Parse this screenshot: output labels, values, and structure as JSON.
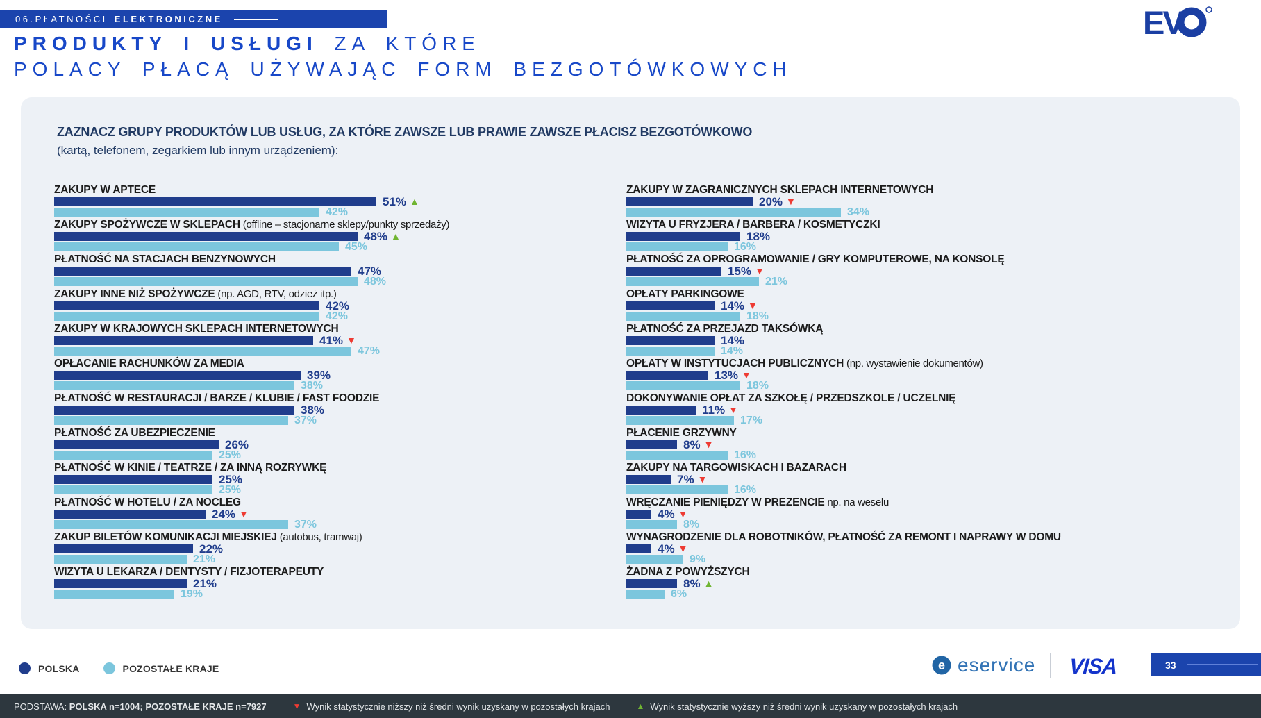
{
  "header": {
    "section": "06.PŁATNOŚCI",
    "section_bold": "ELEKTRONICZNE",
    "title_bold": "PRODUKTY I USŁUGI",
    "title_light": "ZA KTÓRE",
    "title_line2": "POLACY PŁACĄ UŻYWAJĄC FORM BEZGOTÓWKOWYCH"
  },
  "card": {
    "question_bold": "ZAZNACZ GRUPY PRODUKTÓW LUB USŁUG, ZA KTÓRE ZAWSZE LUB PRAWIE ZAWSZE PŁACISZ BEZGOTÓWKOWO",
    "question_sub": "(kartą, telefonem, zegarkiem lub innym urządzeniem):"
  },
  "legend": {
    "items": [
      {
        "label": "POLSKA",
        "color": "#203d8c"
      },
      {
        "label": "POZOSTAŁE KRAJE",
        "color": "#7cc6dd"
      }
    ]
  },
  "footer": {
    "base_label": "PODSTAWA: ",
    "base_value": "POLSKA n=1004; POZOSTAŁE KRAJE n=7927",
    "down_note": "Wynik statystycznie niższy niż średni wynik uzyskany w pozostałych krajach",
    "up_note": "Wynik statystycznie wyższy niż średni wynik uzyskany w pozostałych krajach"
  },
  "branding": {
    "evo_ev": "EV",
    "eservice_icon_letter": "e",
    "eservice": "eservice",
    "visa": "VISA",
    "page_number": "33"
  },
  "chart_data": {
    "type": "bar",
    "orientation": "horizontal",
    "unit": "%",
    "series_names": [
      "POLSKA",
      "POZOSTAŁE KRAJE"
    ],
    "colors": {
      "polska": "#203d8c",
      "pozostale": "#7cc6dd",
      "up": "#70b532",
      "down": "#ee3b33"
    },
    "marker_meaning": {
      "down": "Wynik statystycznie niższy niż średni wynik uzyskany w pozostałych krajach",
      "up": "Wynik statystycznie wyższy niż średni wynik uzyskany w pozostałych krajach"
    },
    "columns": [
      {
        "items": [
          {
            "label": "ZAKUPY W APTECE",
            "note": "",
            "polska": 51,
            "pozostale": 42,
            "marker": "up"
          },
          {
            "label": "ZAKUPY SPOŻYWCZE W SKLEPACH",
            "note": "(offline – stacjonarne sklepy/punkty sprzedaży)",
            "polska": 48,
            "pozostale": 45,
            "marker": "up"
          },
          {
            "label": "PŁATNOŚĆ NA STACJACH BENZYNOWYCH",
            "note": "",
            "polska": 47,
            "pozostale": 48,
            "marker": null
          },
          {
            "label": "ZAKUPY INNE NIŻ SPOŻYWCZE",
            "note": "(np. AGD, RTV, odzież itp.)",
            "polska": 42,
            "pozostale": 42,
            "marker": null
          },
          {
            "label": "ZAKUPY W KRAJOWYCH SKLEPACH INTERNETOWYCH",
            "note": "",
            "polska": 41,
            "pozostale": 47,
            "marker": "down"
          },
          {
            "label": "OPŁACANIE RACHUNKÓW ZA MEDIA",
            "note": "",
            "polska": 39,
            "pozostale": 38,
            "marker": null
          },
          {
            "label": "PŁATNOŚĆ W RESTAURACJI / BARZE / KLUBIE / FAST FOODZIE",
            "note": "",
            "polska": 38,
            "pozostale": 37,
            "marker": null
          },
          {
            "label": "PŁATNOŚĆ ZA UBEZPIECZENIE",
            "note": "",
            "polska": 26,
            "pozostale": 25,
            "marker": null
          },
          {
            "label": "PŁATNOŚĆ W KINIE / TEATRZE / ZA INNĄ ROZRYWKĘ",
            "note": "",
            "polska": 25,
            "pozostale": 25,
            "marker": null
          },
          {
            "label": "PŁATNOŚĆ W HOTELU / ZA NOCLEG",
            "note": "",
            "polska": 24,
            "pozostale": 37,
            "marker": "down"
          },
          {
            "label": "ZAKUP BILETÓW KOMUNIKACJI MIEJSKIEJ",
            "note": "(autobus, tramwaj)",
            "polska": 22,
            "pozostale": 21,
            "marker": null
          },
          {
            "label": "WIZYTA U LEKARZA / DENTYSTY / FIZJOTERAPEUTY",
            "note": "",
            "polska": 21,
            "pozostale": 19,
            "marker": null
          }
        ]
      },
      {
        "items": [
          {
            "label": "ZAKUPY W ZAGRANICZNYCH SKLEPACH INTERNETOWYCH",
            "note": "",
            "polska": 20,
            "pozostale": 34,
            "marker": "down"
          },
          {
            "label": "WIZYTA U FRYZJERA / BARBERA / KOSMETYCZKI",
            "note": "",
            "polska": 18,
            "pozostale": 16,
            "marker": null
          },
          {
            "label": "PŁATNOŚĆ ZA OPROGRAMOWANIE / GRY KOMPUTEROWE, NA KONSOLĘ",
            "note": "",
            "polska": 15,
            "pozostale": 21,
            "marker": "down"
          },
          {
            "label": "OPŁATY PARKINGOWE",
            "note": "",
            "polska": 14,
            "pozostale": 18,
            "marker": "down"
          },
          {
            "label": "PŁATNOŚĆ ZA PRZEJAZD TAKSÓWKĄ",
            "note": "",
            "polska": 14,
            "pozostale": 14,
            "marker": null
          },
          {
            "label": "OPŁATY W INSTYTUCJACH PUBLICZNYCH",
            "note": "(np. wystawienie dokumentów)",
            "polska": 13,
            "pozostale": 18,
            "marker": "down"
          },
          {
            "label": "DOKONYWANIE OPŁAT ZA SZKOŁĘ / PRZEDSZKOLE / UCZELNIĘ",
            "note": "",
            "polska": 11,
            "pozostale": 17,
            "marker": "down"
          },
          {
            "label": "PŁACENIE GRZYWNY",
            "note": "",
            "polska": 8,
            "pozostale": 16,
            "marker": "down"
          },
          {
            "label": "ZAKUPY NA TARGOWISKACH I BAZARACH",
            "note": "",
            "polska": 7,
            "pozostale": 16,
            "marker": "down"
          },
          {
            "label": "WRĘCZANIE PIENIĘDZY W PREZENCIE",
            "note": "np. na weselu",
            "polska": 4,
            "pozostale": 8,
            "marker": "down"
          },
          {
            "label": "WYNAGRODZENIE DLA ROBOTNIKÓW, PŁATNOŚĆ ZA REMONT I NAPRAWY W DOMU",
            "note": "",
            "polska": 4,
            "pozostale": 9,
            "marker": "down"
          },
          {
            "label": "ŻADNA Z POWYŻSZYCH",
            "note": "",
            "polska": 8,
            "pozostale": 6,
            "marker": "up"
          }
        ]
      }
    ]
  }
}
